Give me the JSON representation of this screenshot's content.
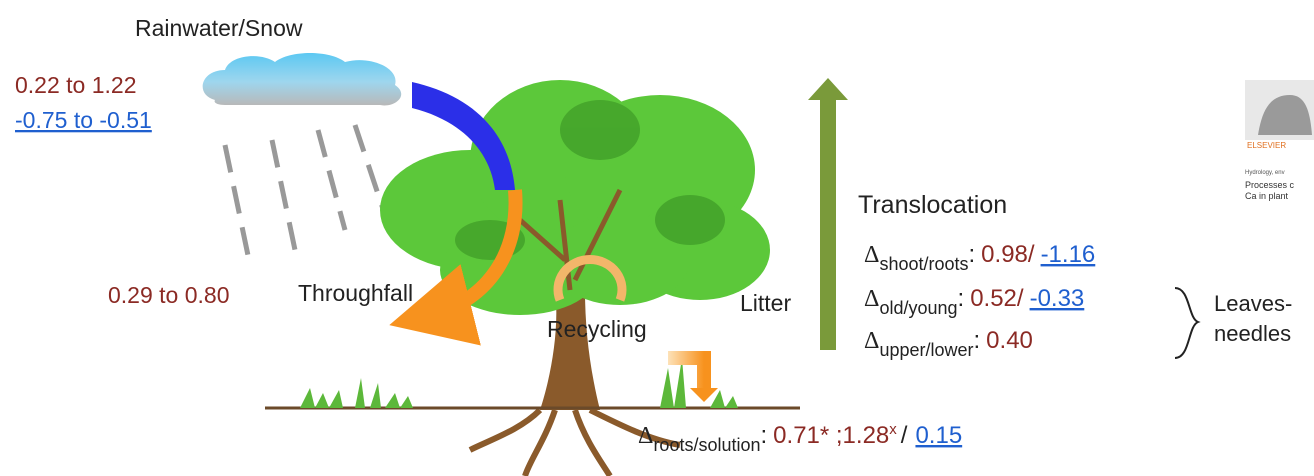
{
  "title": "Rainwater/Snow",
  "rain": {
    "range_a": "0.22 to 1.22",
    "range_b": "-0.75 to -0.51"
  },
  "throughfall": {
    "value": "0.29 to 0.80",
    "label": "Throughfall"
  },
  "recycling": "Recycling",
  "litter": "Litter",
  "translocation": {
    "label": "Translocation",
    "rows": [
      {
        "symbol": "Δ",
        "sub": "shoot/roots",
        "colon": ":",
        "a": "0.98/",
        "b": "-1.16"
      },
      {
        "symbol": "Δ",
        "sub": "old/young",
        "colon": ":",
        "a": "0.52/",
        "b": "-0.33"
      },
      {
        "symbol": "Δ",
        "sub": "upper/lower",
        "colon": ":",
        "a": "0.40"
      }
    ]
  },
  "leaves": [
    "Leaves-",
    "needles"
  ],
  "roots": {
    "symbol": "Δ",
    "sub": "roots/solution",
    "colon": ":",
    "a": "0.71* ;1.28",
    "sup": "x",
    "sep": "/",
    "b": "0.15"
  },
  "thumbnail": {
    "publisher": "ELSEVIER",
    "journal": "Hydrology, env",
    "line1": "Processes c",
    "line2": "Ca in plant"
  }
}
